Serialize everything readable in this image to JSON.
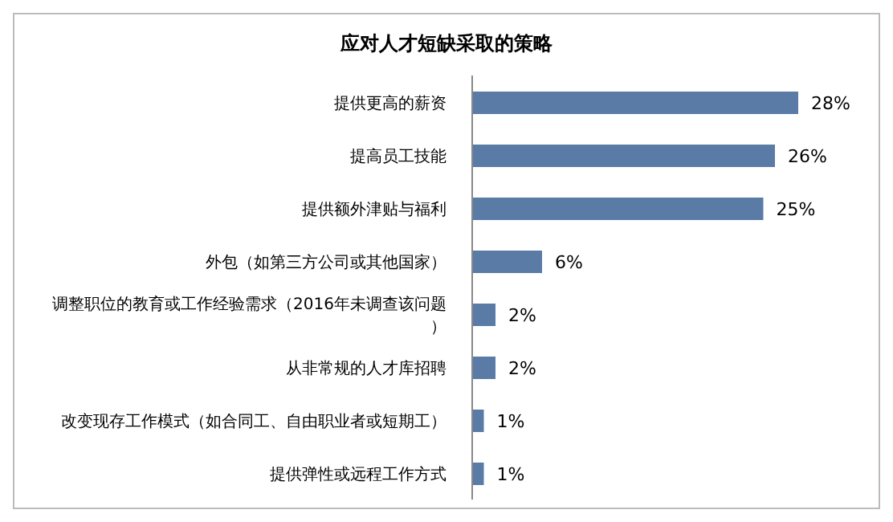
{
  "chart_data": {
    "type": "bar",
    "orientation": "horizontal",
    "title": "应对人才短缺采取的策略",
    "categories": [
      "提供更高的薪资",
      "提高员工技能",
      "提供额外津贴与福利",
      "外包（如第三方公司或其他国家）",
      "调整职位的教育或工作经验需求（2016年未调查该问题）",
      "从非常规的人才库招聘",
      "改变现存工作模式（如合同工、自由职业者或短期工）",
      "提供弹性或远程工作方式"
    ],
    "values": [
      28,
      26,
      25,
      6,
      2,
      2,
      1,
      1
    ],
    "value_labels": [
      "28%",
      "26%",
      "25%",
      "6%",
      "2%",
      "2%",
      "1%",
      "1%"
    ],
    "color": "#5b7ba7"
  }
}
